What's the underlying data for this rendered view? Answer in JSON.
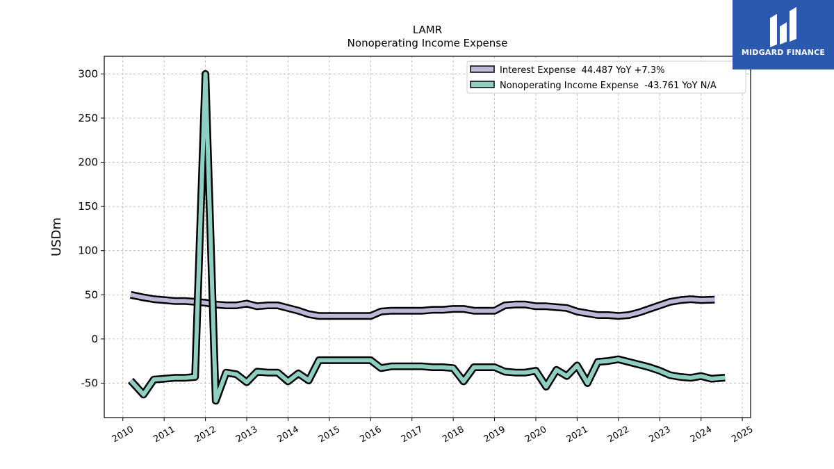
{
  "brand": {
    "name": "MIDGARD FINANCE",
    "bg_color": "#2b59ad"
  },
  "chart_data": {
    "type": "line",
    "title": "LAMR",
    "subtitle": "Nonoperating Income Expense",
    "ylabel": "USDm",
    "xlabel": "",
    "xlim": [
      2009.55,
      2025.2
    ],
    "ylim": [
      -89,
      320
    ],
    "x_ticks": [
      "2010",
      "2011",
      "2012",
      "2013",
      "2014",
      "2015",
      "2016",
      "2017",
      "2018",
      "2019",
      "2020",
      "2021",
      "2022",
      "2023",
      "2024",
      "2025"
    ],
    "y_ticks": [
      "0",
      "50",
      "100",
      "150",
      "200",
      "250",
      "300",
      "-50"
    ],
    "grid": true,
    "legend_position": "top-right",
    "series": [
      {
        "name": "Interest Expense",
        "legend_label": "Interest Expense  44.487 YoY +7.3%",
        "color": "#bcb8d8",
        "points": [
          [
            2010.19,
            50
          ],
          [
            2010.5,
            47
          ],
          [
            2010.75,
            45
          ],
          [
            2011.0,
            44
          ],
          [
            2011.25,
            43
          ],
          [
            2011.5,
            43
          ],
          [
            2011.75,
            42
          ],
          [
            2012.0,
            41
          ],
          [
            2012.25,
            39
          ],
          [
            2012.5,
            38
          ],
          [
            2012.75,
            38
          ],
          [
            2013.0,
            40
          ],
          [
            2013.25,
            37
          ],
          [
            2013.5,
            38
          ],
          [
            2013.75,
            38
          ],
          [
            2014.0,
            35
          ],
          [
            2014.25,
            32
          ],
          [
            2014.5,
            28
          ],
          [
            2014.75,
            26
          ],
          [
            2015.0,
            26
          ],
          [
            2015.25,
            26
          ],
          [
            2015.5,
            26
          ],
          [
            2015.75,
            26
          ],
          [
            2016.0,
            26
          ],
          [
            2016.25,
            31
          ],
          [
            2016.5,
            32
          ],
          [
            2016.75,
            32
          ],
          [
            2017.0,
            32
          ],
          [
            2017.25,
            32
          ],
          [
            2017.5,
            33
          ],
          [
            2017.75,
            33
          ],
          [
            2018.0,
            34
          ],
          [
            2018.25,
            34
          ],
          [
            2018.5,
            32
          ],
          [
            2018.75,
            32
          ],
          [
            2019.0,
            32
          ],
          [
            2019.25,
            38
          ],
          [
            2019.5,
            39
          ],
          [
            2019.75,
            39
          ],
          [
            2020.0,
            37
          ],
          [
            2020.25,
            37
          ],
          [
            2020.5,
            36
          ],
          [
            2020.75,
            35
          ],
          [
            2021.0,
            31
          ],
          [
            2021.25,
            29
          ],
          [
            2021.5,
            27
          ],
          [
            2021.75,
            27
          ],
          [
            2022.0,
            26
          ],
          [
            2022.25,
            27
          ],
          [
            2022.5,
            30
          ],
          [
            2022.75,
            34
          ],
          [
            2023.0,
            38
          ],
          [
            2023.25,
            42
          ],
          [
            2023.5,
            44
          ],
          [
            2023.75,
            45
          ],
          [
            2024.0,
            44
          ],
          [
            2024.33,
            44.487
          ]
        ]
      },
      {
        "name": "Nonoperating Income Expense",
        "legend_label": "Nonoperating Income Expense  -43.761 YoY N/A",
        "color": "#8ecfc2",
        "points": [
          [
            2010.19,
            -47
          ],
          [
            2010.5,
            -63
          ],
          [
            2010.75,
            -46
          ],
          [
            2011.0,
            -45
          ],
          [
            2011.25,
            -44
          ],
          [
            2011.5,
            -44
          ],
          [
            2011.75,
            -43
          ],
          [
            2012.0,
            300
          ],
          [
            2012.25,
            -70
          ],
          [
            2012.5,
            -38
          ],
          [
            2012.75,
            -40
          ],
          [
            2013.0,
            -49
          ],
          [
            2013.25,
            -37
          ],
          [
            2013.5,
            -38
          ],
          [
            2013.75,
            -38
          ],
          [
            2014.0,
            -48
          ],
          [
            2014.25,
            -39
          ],
          [
            2014.5,
            -47
          ],
          [
            2014.75,
            -24
          ],
          [
            2015.0,
            -24
          ],
          [
            2015.25,
            -24
          ],
          [
            2015.5,
            -24
          ],
          [
            2015.75,
            -24
          ],
          [
            2016.0,
            -24
          ],
          [
            2016.25,
            -33
          ],
          [
            2016.5,
            -31
          ],
          [
            2016.75,
            -31
          ],
          [
            2017.0,
            -31
          ],
          [
            2017.25,
            -31
          ],
          [
            2017.5,
            -32
          ],
          [
            2017.75,
            -32
          ],
          [
            2018.0,
            -33
          ],
          [
            2018.25,
            -48
          ],
          [
            2018.5,
            -32
          ],
          [
            2018.75,
            -32
          ],
          [
            2019.0,
            -32
          ],
          [
            2019.25,
            -37
          ],
          [
            2019.5,
            -38
          ],
          [
            2019.75,
            -38
          ],
          [
            2020.0,
            -36
          ],
          [
            2020.25,
            -54
          ],
          [
            2020.5,
            -35
          ],
          [
            2020.75,
            -42
          ],
          [
            2021.0,
            -30
          ],
          [
            2021.25,
            -50
          ],
          [
            2021.5,
            -26
          ],
          [
            2021.75,
            -25
          ],
          [
            2022.0,
            -23
          ],
          [
            2022.25,
            -26
          ],
          [
            2022.5,
            -29
          ],
          [
            2022.75,
            -32
          ],
          [
            2023.0,
            -36
          ],
          [
            2023.25,
            -41
          ],
          [
            2023.5,
            -43
          ],
          [
            2023.75,
            -44
          ],
          [
            2024.0,
            -42
          ],
          [
            2024.25,
            -45
          ],
          [
            2024.58,
            -43.761
          ]
        ]
      }
    ]
  }
}
